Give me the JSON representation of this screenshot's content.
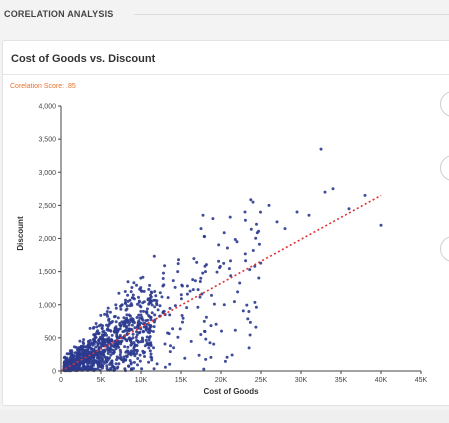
{
  "section": {
    "title": "CORELATION ANALYSIS"
  },
  "card": {
    "title": "Cost of Goods vs. Discount",
    "score_text": "Corelation Score: .85"
  },
  "colors": {
    "points": "#2b3a8f",
    "trend": "#e03030",
    "score": "#e8722c"
  },
  "chart_data": {
    "type": "scatter",
    "title": "Cost of Goods vs. Discount",
    "xlabel": "Cost of Goods",
    "ylabel": "Discount",
    "xlim": [
      0,
      45000
    ],
    "ylim": [
      0,
      4000
    ],
    "x_ticks": [
      0,
      5000,
      10000,
      15000,
      20000,
      25000,
      30000,
      35000,
      40000,
      45000
    ],
    "x_tick_labels": [
      "0",
      "5K",
      "10K",
      "15K",
      "20K",
      "25K",
      "30K",
      "35K",
      "40K",
      "45K"
    ],
    "y_ticks": [
      0,
      500,
      1000,
      1500,
      2000,
      2500,
      3000,
      3500,
      4000
    ],
    "y_tick_labels": [
      "0",
      "500",
      "1,000",
      "1,500",
      "2,000",
      "2,500",
      "3,000",
      "3,500",
      "4,000"
    ],
    "grid": false,
    "legend": "none",
    "trendline": {
      "style": "dotted",
      "from": [
        0,
        0
      ],
      "to": [
        40000,
        2650
      ]
    },
    "sample_points": [
      [
        32500,
        3350
      ],
      [
        33000,
        2700
      ],
      [
        34000,
        2750
      ],
      [
        29500,
        2400
      ],
      [
        36000,
        2450
      ],
      [
        40000,
        2200
      ],
      [
        24000,
        2550
      ],
      [
        26000,
        2500
      ],
      [
        23000,
        2400
      ],
      [
        17500,
        2150
      ],
      [
        27000,
        2250
      ],
      [
        31000,
        2350
      ],
      [
        38000,
        2650
      ],
      [
        28000,
        2150
      ],
      [
        22000,
        1950
      ]
    ]
  }
}
